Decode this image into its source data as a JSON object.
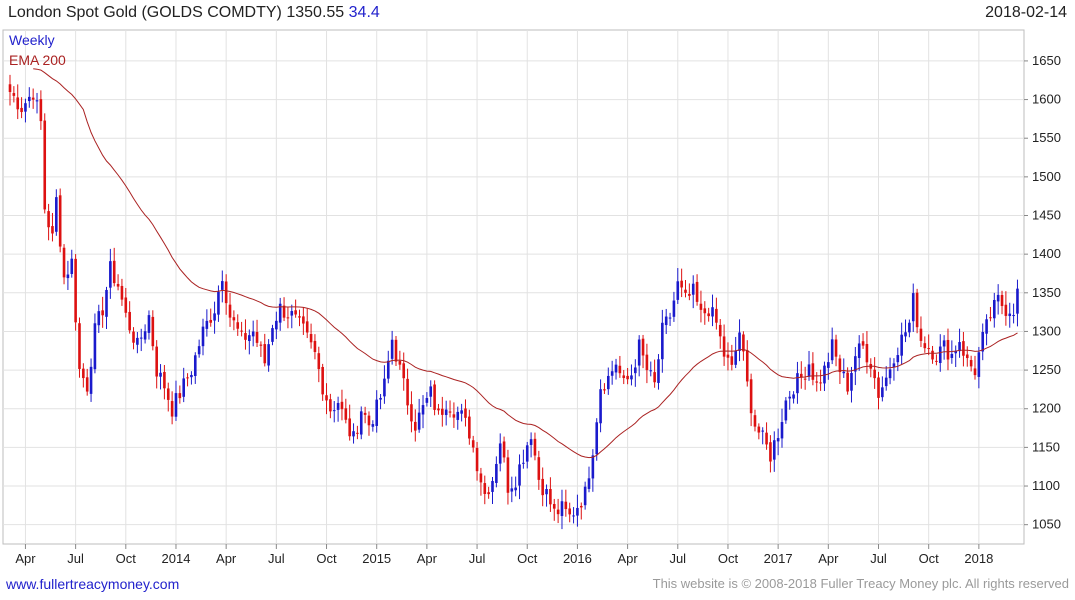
{
  "header": {
    "title": "London Spot Gold (GOLDS COMDTY)",
    "last_price": "1350.55",
    "change": "34.4",
    "date": "2018-02-14"
  },
  "footer": {
    "website": "www.fullertreacymoney.com",
    "copyright": "This website is © 2008-2018 Fuller Treacy Money plc. All rights reserved"
  },
  "colors": {
    "up": "#1a1acc",
    "down": "#dd1111",
    "ema": "#aa2222",
    "grid": "#e2e2e2"
  },
  "chart_data": {
    "type": "candlestick",
    "interval": "Weekly",
    "overlay": "EMA 200",
    "ylim": [
      1025,
      1690
    ],
    "y_ticks": [
      1050,
      1100,
      1150,
      1200,
      1250,
      1300,
      1350,
      1400,
      1450,
      1500,
      1550,
      1600,
      1650
    ],
    "x_ticks": [
      "Apr",
      "Jul",
      "Oct",
      "2014",
      "Apr",
      "Jul",
      "Oct",
      "2015",
      "Apr",
      "Jul",
      "Oct",
      "2016",
      "Apr",
      "Jul",
      "Oct",
      "2017",
      "Apr",
      "Jul",
      "Oct",
      "2018"
    ],
    "x_tick_weeks": [
      4,
      17,
      30,
      43,
      56,
      69,
      82,
      95,
      108,
      121,
      134,
      147,
      160,
      173,
      186,
      199,
      212,
      225,
      238,
      251
    ],
    "weeks": 262,
    "close_anchors": [
      [
        0,
        1610
      ],
      [
        3,
        1590
      ],
      [
        6,
        1610
      ],
      [
        8,
        1570
      ],
      [
        9,
        1460
      ],
      [
        11,
        1420
      ],
      [
        12,
        1470
      ],
      [
        14,
        1370
      ],
      [
        16,
        1390
      ],
      [
        18,
        1250
      ],
      [
        20,
        1230
      ],
      [
        22,
        1300
      ],
      [
        24,
        1330
      ],
      [
        26,
        1380
      ],
      [
        28,
        1360
      ],
      [
        30,
        1320
      ],
      [
        33,
        1280
      ],
      [
        36,
        1320
      ],
      [
        38,
        1250
      ],
      [
        40,
        1230
      ],
      [
        42,
        1200
      ],
      [
        44,
        1220
      ],
      [
        47,
        1250
      ],
      [
        50,
        1300
      ],
      [
        53,
        1330
      ],
      [
        55,
        1375
      ],
      [
        57,
        1320
      ],
      [
        60,
        1290
      ],
      [
        63,
        1300
      ],
      [
        66,
        1260
      ],
      [
        68,
        1310
      ],
      [
        70,
        1330
      ],
      [
        73,
        1320
      ],
      [
        76,
        1300
      ],
      [
        79,
        1270
      ],
      [
        81,
        1230
      ],
      [
        83,
        1200
      ],
      [
        85,
        1210
      ],
      [
        87,
        1180
      ],
      [
        89,
        1160
      ],
      [
        91,
        1200
      ],
      [
        93,
        1180
      ],
      [
        95,
        1200
      ],
      [
        97,
        1230
      ],
      [
        99,
        1290
      ],
      [
        101,
        1250
      ],
      [
        103,
        1210
      ],
      [
        105,
        1180
      ],
      [
        107,
        1200
      ],
      [
        109,
        1220
      ],
      [
        111,
        1190
      ],
      [
        113,
        1210
      ],
      [
        115,
        1200
      ],
      [
        117,
        1190
      ],
      [
        119,
        1170
      ],
      [
        121,
        1130
      ],
      [
        123,
        1090
      ],
      [
        125,
        1110
      ],
      [
        127,
        1160
      ],
      [
        129,
        1100
      ],
      [
        131,
        1110
      ],
      [
        133,
        1140
      ],
      [
        135,
        1170
      ],
      [
        137,
        1110
      ],
      [
        139,
        1090
      ],
      [
        141,
        1065
      ],
      [
        143,
        1070
      ],
      [
        145,
        1060
      ],
      [
        147,
        1075
      ],
      [
        149,
        1090
      ],
      [
        151,
        1150
      ],
      [
        153,
        1230
      ],
      [
        155,
        1240
      ],
      [
        157,
        1260
      ],
      [
        159,
        1230
      ],
      [
        161,
        1245
      ],
      [
        163,
        1280
      ],
      [
        165,
        1250
      ],
      [
        167,
        1230
      ],
      [
        169,
        1300
      ],
      [
        171,
        1320
      ],
      [
        173,
        1360
      ],
      [
        175,
        1340
      ],
      [
        177,
        1350
      ],
      [
        179,
        1320
      ],
      [
        181,
        1330
      ],
      [
        183,
        1310
      ],
      [
        185,
        1270
      ],
      [
        187,
        1250
      ],
      [
        189,
        1300
      ],
      [
        191,
        1230
      ],
      [
        193,
        1180
      ],
      [
        195,
        1160
      ],
      [
        197,
        1140
      ],
      [
        199,
        1170
      ],
      [
        201,
        1210
      ],
      [
        203,
        1230
      ],
      [
        205,
        1240
      ],
      [
        207,
        1260
      ],
      [
        209,
        1230
      ],
      [
        211,
        1250
      ],
      [
        213,
        1280
      ],
      [
        215,
        1250
      ],
      [
        217,
        1230
      ],
      [
        219,
        1270
      ],
      [
        221,
        1280
      ],
      [
        223,
        1260
      ],
      [
        225,
        1220
      ],
      [
        227,
        1240
      ],
      [
        229,
        1270
      ],
      [
        231,
        1290
      ],
      [
        233,
        1310
      ],
      [
        234,
        1340
      ],
      [
        236,
        1290
      ],
      [
        238,
        1280
      ],
      [
        240,
        1270
      ],
      [
        242,
        1280
      ],
      [
        244,
        1270
      ],
      [
        246,
        1290
      ],
      [
        248,
        1260
      ],
      [
        250,
        1250
      ],
      [
        252,
        1290
      ],
      [
        254,
        1320
      ],
      [
        256,
        1340
      ],
      [
        258,
        1330
      ],
      [
        260,
        1330
      ],
      [
        261,
        1350
      ]
    ]
  }
}
